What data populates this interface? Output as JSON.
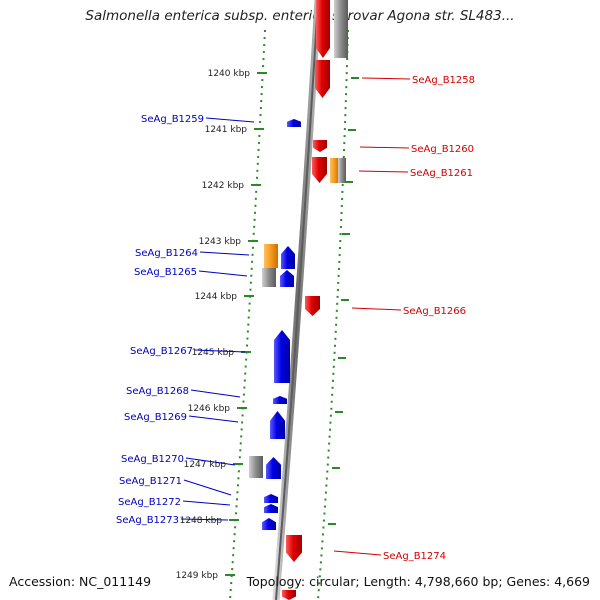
{
  "title": "Salmonella enterica subsp. enterica serovar Agona str. SL483...",
  "accession_text": "Accession: NC_011149",
  "summary_text": "Topology: circular; Length: 4,798,660 bp; Genes: 4,669",
  "colors": {
    "forward_gene": "#e00000",
    "reverse_gene": "#0000e6",
    "rna": "#f59a1a",
    "pseudo": "#8a8a8a",
    "backbone": "#7a7a7a",
    "tick": "#2a8a2a",
    "right_label": "#d40000",
    "left_label": "#0000c0"
  },
  "ticks": [
    {
      "label": "1240 kbp"
    },
    {
      "label": "1241 kbp"
    },
    {
      "label": "1242 kbp"
    },
    {
      "label": "1243 kbp"
    },
    {
      "label": "1244 kbp"
    },
    {
      "label": "1245 kbp"
    },
    {
      "label": "1246 kbp"
    },
    {
      "label": "1247 kbp"
    },
    {
      "label": "1248 kbp"
    },
    {
      "label": "1249 kbp"
    }
  ],
  "right_labels": [
    "SeAg_B1258",
    "SeAg_B1260",
    "SeAg_B1261",
    "SeAg_B1266",
    "SeAg_B1274"
  ],
  "left_labels": [
    "SeAg_B1259",
    "SeAg_B1264",
    "SeAg_B1265",
    "SeAg_B1267",
    "SeAg_B1268",
    "SeAg_B1269",
    "SeAg_B1270",
    "SeAg_B1271",
    "SeAg_B1272",
    "SeAg_B1273"
  ]
}
